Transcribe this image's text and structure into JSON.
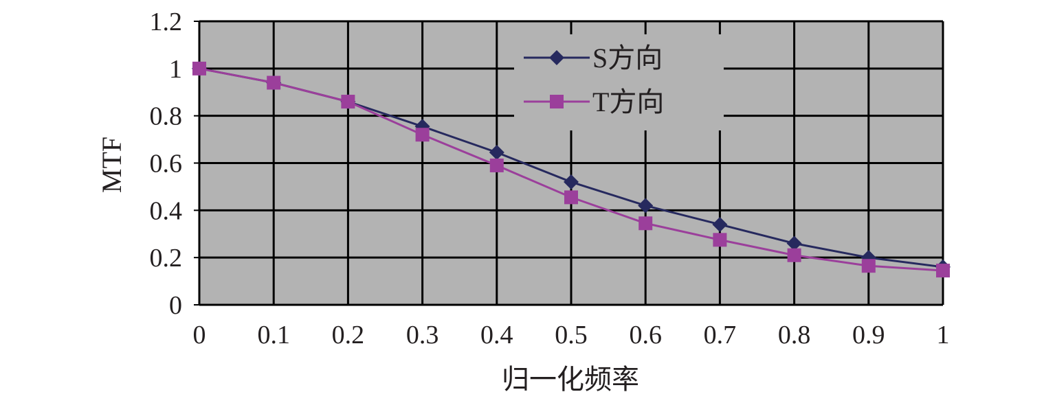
{
  "chart_data": {
    "type": "line",
    "title": "",
    "xlabel": "归一化频率",
    "ylabel": "MTF",
    "x": [
      0,
      0.1,
      0.2,
      0.3,
      0.4,
      0.5,
      0.6,
      0.7,
      0.8,
      0.9,
      1
    ],
    "x_tick_labels": [
      "0",
      "0.1",
      "0.2",
      "0.3",
      "0.4",
      "0.5",
      "0.6",
      "0.7",
      "0.8",
      "0.9",
      "1"
    ],
    "y_tick_labels": [
      "0",
      "0.2",
      "0.4",
      "0.6",
      "0.8",
      "1",
      "1.2"
    ],
    "xlim": [
      0,
      1
    ],
    "ylim": [
      0,
      1.2
    ],
    "grid": true,
    "legend_position": "top-center",
    "plot_background": "#b3b3b3",
    "series": [
      {
        "name": "S方向",
        "marker": "diamond",
        "color": "#26295e",
        "values": [
          1.0,
          0.94,
          0.86,
          0.755,
          0.645,
          0.52,
          0.42,
          0.34,
          0.26,
          0.2,
          0.16
        ]
      },
      {
        "name": "T方向",
        "marker": "square",
        "color": "#9b3f9b",
        "values": [
          1.0,
          0.94,
          0.86,
          0.72,
          0.59,
          0.455,
          0.345,
          0.275,
          0.21,
          0.165,
          0.145
        ]
      }
    ]
  }
}
